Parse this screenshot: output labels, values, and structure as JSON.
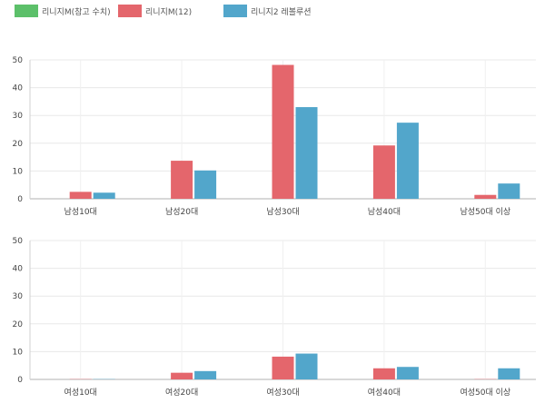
{
  "legend": [
    {
      "label": "리니지M(참고 수치)",
      "color": "#5cc06a"
    },
    {
      "label": "리니지M(12)",
      "color": "#e4666c"
    },
    {
      "label": "리니지2 레볼루션",
      "color": "#52a6cb"
    }
  ],
  "chart_data": [
    {
      "type": "bar",
      "title": "",
      "categories": [
        "남성10대",
        "남성20대",
        "남성30대",
        "남성40대",
        "남성50대 이상"
      ],
      "series": [
        {
          "name": "리니지M(참고 수치)",
          "values": [
            0,
            0,
            0,
            0,
            0
          ]
        },
        {
          "name": "리니지M(12)",
          "values": [
            2.5,
            13.7,
            48.2,
            19.2,
            1.4
          ]
        },
        {
          "name": "리니지2 레볼루션",
          "values": [
            2.2,
            10.2,
            33,
            27.4,
            5.5
          ]
        }
      ],
      "xlabel": "",
      "ylabel": "",
      "ylim": [
        0,
        50
      ],
      "yticks": [
        0,
        10,
        20,
        30,
        40,
        50
      ],
      "grid": true
    },
    {
      "type": "bar",
      "title": "",
      "categories": [
        "여성10대",
        "여성20대",
        "여성30대",
        "여성40대",
        "여성50대 이상"
      ],
      "series": [
        {
          "name": "리니지M(참고 수치)",
          "values": [
            0,
            0,
            0,
            0,
            0
          ]
        },
        {
          "name": "리니지M(12)",
          "values": [
            0.1,
            2.4,
            8.2,
            4.0,
            0.1
          ]
        },
        {
          "name": "리니지2 레볼루션",
          "values": [
            0.1,
            3.0,
            9.3,
            4.5,
            4.0
          ]
        }
      ],
      "xlabel": "",
      "ylabel": "",
      "ylim": [
        0,
        50
      ],
      "yticks": [
        0,
        10,
        20,
        30,
        40,
        50
      ],
      "grid": true
    }
  ]
}
